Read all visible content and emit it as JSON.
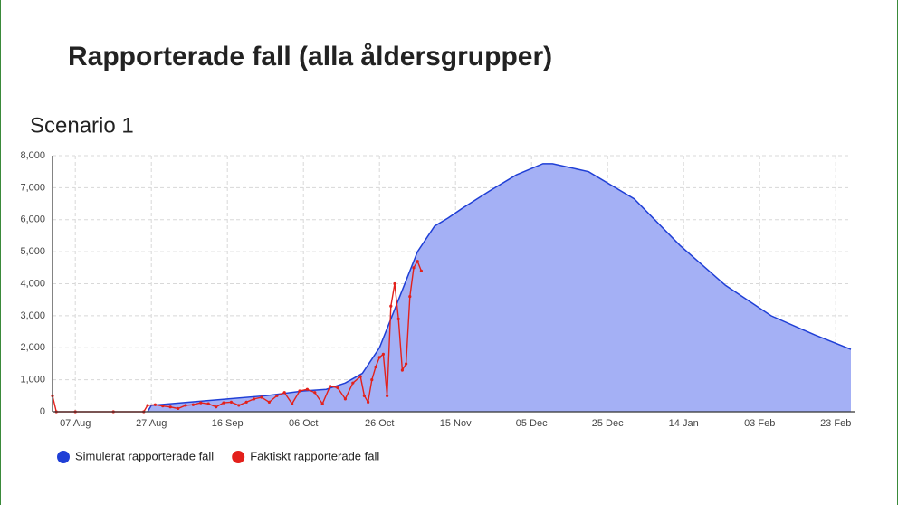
{
  "chart_data": {
    "type": "area_line",
    "title": "Rapporterade fall (alla åldersgrupper)",
    "subtitle": "Scenario 1",
    "xlim": [
      -6,
      204
    ],
    "ylim": [
      0,
      8000
    ],
    "yticks": [
      0,
      {
        "value": 1000,
        "label": "1,000"
      },
      {
        "value": 2000,
        "label": "2,000"
      },
      {
        "value": 3000,
        "label": "3,000"
      },
      {
        "value": 4000,
        "label": "4,000"
      },
      {
        "value": 5000,
        "label": "5,000"
      },
      {
        "value": 6000,
        "label": "6,000"
      },
      {
        "value": 7000,
        "label": "7,000"
      },
      {
        "value": 8000,
        "label": "8,000"
      }
    ],
    "xticks": [
      {
        "value": 0,
        "label": "07 Aug"
      },
      {
        "value": 20,
        "label": "27 Aug"
      },
      {
        "value": 40,
        "label": "16 Sep"
      },
      {
        "value": 60,
        "label": "06 Oct"
      },
      {
        "value": 80,
        "label": "26 Oct"
      },
      {
        "value": 100,
        "label": "15 Nov"
      },
      {
        "value": 120,
        "label": "05 Dec"
      },
      {
        "value": 140,
        "label": "25 Dec"
      },
      {
        "value": 160,
        "label": "14 Jan"
      },
      {
        "value": 180,
        "label": "03 Feb"
      },
      {
        "value": 200,
        "label": "23 Feb"
      }
    ],
    "grid": true,
    "legend": "bottom",
    "series": [
      {
        "name": "Simulerat rapporterade fall",
        "kind": "area",
        "color": "#1f3fd6",
        "fill": "#a4b0f5",
        "x": [
          19,
          20,
          30,
          40,
          50,
          60,
          66,
          71,
          75.5,
          80,
          85,
          90,
          94.5,
          98,
          101.7,
          109,
          116,
          123,
          125.5,
          135,
          147,
          159,
          171,
          183,
          194.5,
          204
        ],
        "values": [
          0,
          200,
          300,
          400,
          500,
          650,
          700,
          900,
          1200,
          2000,
          3500,
          5000,
          5800,
          6050,
          6350,
          6900,
          7400,
          7750,
          7750,
          7500,
          6650,
          5200,
          3950,
          3000,
          2400,
          1950
        ]
      },
      {
        "name": "Faktiskt rapporterade fall",
        "kind": "line",
        "color": "#e3201b",
        "x": [
          -6,
          -5,
          0,
          10,
          18,
          19,
          21,
          23,
          25,
          27,
          29,
          31,
          33,
          35,
          37,
          39,
          41,
          43,
          45,
          47,
          49,
          51,
          53,
          55,
          57,
          59,
          61,
          63,
          65,
          67,
          69,
          71,
          73,
          75,
          76,
          77,
          78,
          79,
          80,
          81,
          82,
          83,
          84,
          85,
          86,
          87,
          88,
          89,
          90,
          91
        ],
        "values": [
          500,
          0,
          0,
          0,
          0,
          200,
          220,
          180,
          150,
          100,
          200,
          220,
          280,
          250,
          150,
          280,
          300,
          200,
          300,
          400,
          450,
          300,
          500,
          600,
          250,
          650,
          700,
          600,
          250,
          800,
          750,
          400,
          900,
          1100,
          500,
          300,
          1000,
          1400,
          1700,
          1800,
          500,
          3300,
          4000,
          2900,
          1300,
          1500,
          3600,
          4500,
          4700,
          4400
        ]
      }
    ]
  }
}
